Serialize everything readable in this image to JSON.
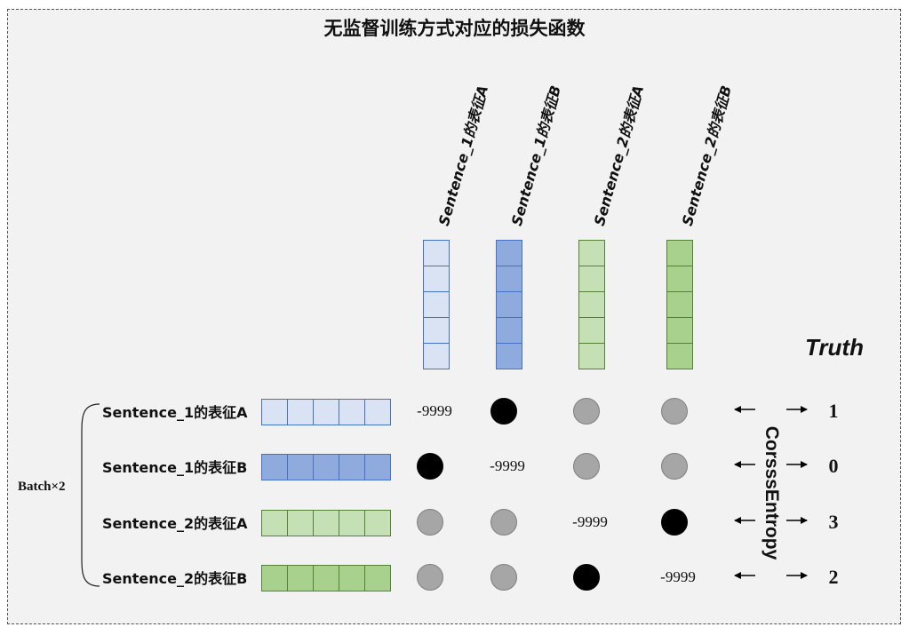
{
  "title": "无监督训练方式对应的损失函数",
  "columns": [
    {
      "label": "Sentence_1的表征A",
      "fill": "#dae3f3",
      "stroke": "#4472c4"
    },
    {
      "label": "Sentence_1的表征B",
      "fill": "#8faadc",
      "stroke": "#4472c4"
    },
    {
      "label": "Sentence_2的表征A",
      "fill": "#c5e0b4",
      "stroke": "#548235"
    },
    {
      "label": "Sentence_2的表征B",
      "fill": "#a9d18e",
      "stroke": "#548235"
    }
  ],
  "rows": [
    {
      "label": "Sentence_1的表征A",
      "fill": "#dae3f3",
      "stroke": "#4472c4"
    },
    {
      "label": "Sentence_1的表征B",
      "fill": "#8faadc",
      "stroke": "#4472c4"
    },
    {
      "label": "Sentence_2的表征A",
      "fill": "#c5e0b4",
      "stroke": "#548235"
    },
    {
      "label": "Sentence_2的表征B",
      "fill": "#a9d18e",
      "stroke": "#548235"
    }
  ],
  "matrix": [
    [
      "masked",
      "positive",
      "negative",
      "negative"
    ],
    [
      "positive",
      "masked",
      "negative",
      "negative"
    ],
    [
      "negative",
      "negative",
      "masked",
      "positive"
    ],
    [
      "negative",
      "negative",
      "positive",
      "masked"
    ]
  ],
  "masked_value": "-9999",
  "truth_label": "Truth",
  "truth_values": [
    "1",
    "0",
    "3",
    "2"
  ],
  "loss_label": "CorsssEntropy",
  "batch_label": "Batch×2",
  "vector_cells": 5
}
